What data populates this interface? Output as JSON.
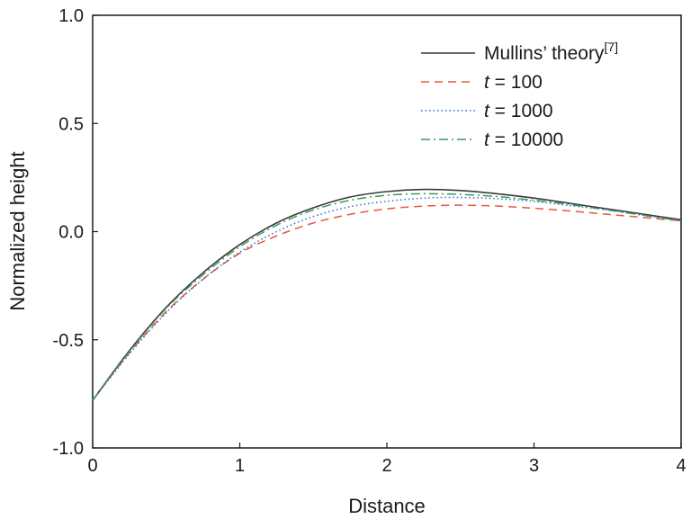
{
  "chart_data": {
    "type": "line",
    "xlabel": "Distance",
    "ylabel": "Normalized height",
    "xlim": [
      0,
      4
    ],
    "ylim": [
      -1.0,
      1.0
    ],
    "x_ticks": [
      "0",
      "1",
      "2",
      "3",
      "4"
    ],
    "y_ticks": [
      "-1.0",
      "-0.5",
      "0.0",
      "0.5",
      "1.0"
    ],
    "grid": false,
    "legend_position": "top-right",
    "x": [
      0,
      0.25,
      0.5,
      0.75,
      1.0,
      1.25,
      1.5,
      1.75,
      2.0,
      2.25,
      2.5,
      2.75,
      3.0,
      3.25,
      3.5,
      3.75,
      4.0
    ],
    "series": [
      {
        "name": "Mullins’ theory",
        "name_superscript": "[7]",
        "color": "#3a3a3a",
        "dash": "solid",
        "values": [
          -0.78,
          -0.55,
          -0.35,
          -0.19,
          -0.06,
          0.04,
          0.11,
          0.16,
          0.185,
          0.195,
          0.19,
          0.175,
          0.155,
          0.13,
          0.105,
          0.08,
          0.055
        ]
      },
      {
        "name": "t = 100",
        "color": "#e8573c",
        "dash": "dashed",
        "values": [
          -0.78,
          -0.56,
          -0.37,
          -0.22,
          -0.1,
          -0.02,
          0.04,
          0.08,
          0.105,
          0.118,
          0.122,
          0.118,
          0.108,
          0.095,
          0.08,
          0.065,
          0.05
        ]
      },
      {
        "name": "t = 1000",
        "color": "#2f6ccf",
        "dash": "dotted",
        "values": [
          -0.78,
          -0.565,
          -0.375,
          -0.22,
          -0.095,
          0.0,
          0.07,
          0.115,
          0.14,
          0.155,
          0.158,
          0.152,
          0.14,
          0.12,
          0.1,
          0.075,
          0.05
        ]
      },
      {
        "name": "t = 10000",
        "color": "#3a9a5c",
        "dash": "dashdot",
        "values": [
          -0.78,
          -0.555,
          -0.355,
          -0.2,
          -0.07,
          0.03,
          0.1,
          0.145,
          0.168,
          0.175,
          0.172,
          0.162,
          0.145,
          0.125,
          0.1,
          0.075,
          0.05
        ]
      }
    ]
  }
}
